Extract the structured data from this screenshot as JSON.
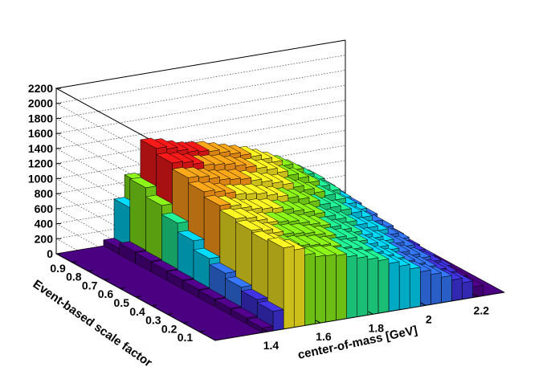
{
  "chart_data": {
    "type": "lego3d",
    "title": "",
    "xlabel": "center-of-mass [GeV]",
    "ylabel": "Event-based scale factor",
    "zlabel": "",
    "xlim": [
      1.2,
      2.3
    ],
    "ylim": [
      0.0,
      1.0
    ],
    "zlim": [
      0,
      2200
    ],
    "x_ticks": [
      "1.4",
      "1.6",
      "1.8",
      "2",
      "2.2"
    ],
    "y_ticks": [
      "0.1",
      "0.2",
      "0.3",
      "0.4",
      "0.5",
      "0.6",
      "0.7",
      "0.8",
      "0.9"
    ],
    "z_ticks": [
      "0",
      "200",
      "400",
      "600",
      "800",
      "1000",
      "1200",
      "1400",
      "1600",
      "1800",
      "2000",
      "2200"
    ],
    "grid": true,
    "palette": [
      "#4b0082",
      "#3b2fd0",
      "#2f6ee8",
      "#00c8e8",
      "#1fe08a",
      "#7fe018",
      "#f0e020",
      "#ff9a18",
      "#f01818"
    ],
    "frame_color": "#000000",
    "gridline_color": "#555555",
    "x_centers": [
      1.36,
      1.4,
      1.44,
      1.48,
      1.52,
      1.56,
      1.6,
      1.64,
      1.68,
      1.72,
      1.76,
      1.8,
      1.84,
      1.88,
      1.92,
      1.96,
      2.0,
      2.04,
      2.08,
      2.12,
      2.16,
      2.2
    ],
    "y_centers": [
      0.05,
      0.15,
      0.25,
      0.35,
      0.45,
      0.55,
      0.65,
      0.75,
      0.85,
      0.95
    ],
    "counts": [
      [
        0,
        60,
        260,
        1080,
        1030,
        940,
        890,
        880,
        860,
        820,
        780,
        740,
        700,
        640,
        580,
        520,
        460,
        400,
        340,
        280,
        220,
        140
      ],
      [
        0,
        80,
        300,
        1050,
        1000,
        950,
        920,
        900,
        880,
        840,
        800,
        760,
        720,
        660,
        600,
        540,
        480,
        420,
        360,
        300,
        240,
        160
      ],
      [
        0,
        90,
        350,
        1080,
        1050,
        1000,
        960,
        940,
        920,
        880,
        840,
        800,
        760,
        700,
        640,
        580,
        520,
        460,
        400,
        340,
        270,
        180
      ],
      [
        0,
        100,
        420,
        1120,
        1100,
        1050,
        1000,
        980,
        960,
        920,
        880,
        840,
        800,
        740,
        680,
        620,
        560,
        500,
        440,
        380,
        300,
        200
      ],
      [
        0,
        110,
        500,
        1180,
        1150,
        1100,
        1060,
        1040,
        1020,
        980,
        940,
        900,
        860,
        800,
        740,
        680,
        620,
        560,
        500,
        420,
        340,
        220
      ],
      [
        0,
        120,
        620,
        1250,
        1220,
        1180,
        1140,
        1120,
        1100,
        1060,
        1020,
        980,
        940,
        880,
        820,
        760,
        700,
        640,
        560,
        480,
        380,
        250
      ],
      [
        0,
        130,
        740,
        1320,
        1300,
        1260,
        1220,
        1200,
        1180,
        1140,
        1100,
        1060,
        1020,
        960,
        900,
        840,
        780,
        700,
        620,
        520,
        420,
        280
      ],
      [
        0,
        140,
        860,
        1400,
        1380,
        1340,
        1300,
        1280,
        1260,
        1220,
        1180,
        1140,
        1100,
        1040,
        980,
        920,
        840,
        760,
        680,
        560,
        450,
        300
      ],
      [
        0,
        150,
        980,
        1480,
        1450,
        1400,
        1360,
        1340,
        1320,
        1280,
        1240,
        1200,
        1160,
        1100,
        1040,
        970,
        890,
        800,
        710,
        590,
        470,
        320
      ],
      [
        0,
        80,
        600,
        900,
        880,
        850,
        830,
        820,
        810,
        790,
        760,
        730,
        700,
        660,
        620,
        580,
        530,
        480,
        420,
        350,
        280,
        190
      ]
    ]
  }
}
